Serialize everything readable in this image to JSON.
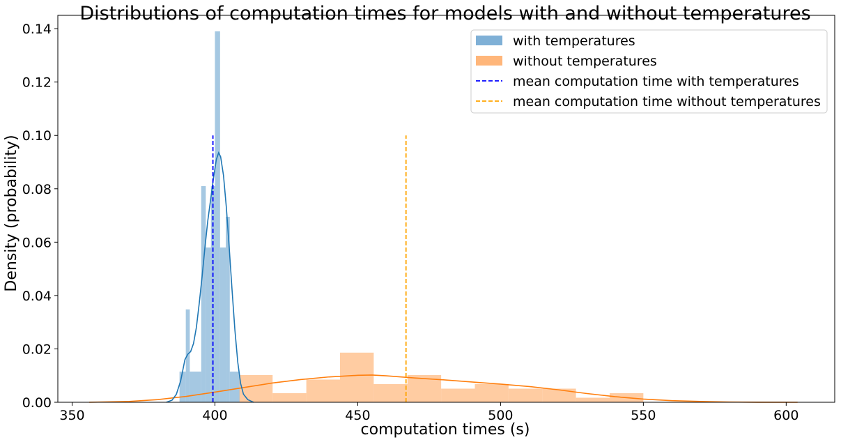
{
  "chart_data": {
    "type": "histogram",
    "title": "Distributions of computation times for models with and without temperatures",
    "xlabel": "computation times (s)",
    "ylabel": "Density (probability)",
    "xlim": [
      345,
      617
    ],
    "ylim": [
      0,
      0.145
    ],
    "xticks": [
      350,
      400,
      450,
      500,
      550,
      600
    ],
    "xtick_labels": [
      "350",
      "400",
      "450",
      "500",
      "550",
      "600"
    ],
    "yticks": [
      0,
      0.02,
      0.04,
      0.06,
      0.08,
      0.1,
      0.12,
      0.14
    ],
    "ytick_labels": [
      "0.00",
      "0.02",
      "0.04",
      "0.06",
      "0.08",
      "0.10",
      "0.12",
      "0.14"
    ],
    "grid": false,
    "legend_position": "top-right",
    "legend": [
      {
        "label": "with temperatures",
        "kind": "patch",
        "color": "#7fb0d6"
      },
      {
        "label": "without temperatures",
        "kind": "patch",
        "color": "#ffb67a"
      },
      {
        "label": "mean computation time with temperatures",
        "kind": "dashed",
        "color": "#0000ff"
      },
      {
        "label": "mean computation time without temperatures",
        "kind": "dashed",
        "color": "#ffa500"
      }
    ],
    "series": [
      {
        "name": "with temperatures",
        "kind": "histogram",
        "color": "#7fb0d6",
        "opacity": 0.7,
        "bins": [
          {
            "x0": 387.6,
            "x1": 389.8,
            "y": 0.0115
          },
          {
            "x0": 389.8,
            "x1": 391.2,
            "y": 0.0348
          },
          {
            "x0": 391.2,
            "x1": 395.2,
            "y": 0.0115
          },
          {
            "x0": 395.2,
            "x1": 396.8,
            "y": 0.081
          },
          {
            "x0": 396.8,
            "x1": 398.6,
            "y": 0.058
          },
          {
            "x0": 398.6,
            "x1": 400.0,
            "y": 0.081
          },
          {
            "x0": 400.0,
            "x1": 401.8,
            "y": 0.139
          },
          {
            "x0": 401.8,
            "x1": 403.8,
            "y": 0.058
          },
          {
            "x0": 403.8,
            "x1": 405.2,
            "y": 0.0695
          },
          {
            "x0": 405.2,
            "x1": 408.6,
            "y": 0.0115
          }
        ]
      },
      {
        "name": "without temperatures",
        "kind": "histogram",
        "color": "#ffb67a",
        "opacity": 0.7,
        "bins": [
          {
            "x0": 408.5,
            "x1": 420.2,
            "y": 0.0102
          },
          {
            "x0": 420.2,
            "x1": 432.0,
            "y": 0.0034
          },
          {
            "x0": 432.0,
            "x1": 443.8,
            "y": 0.0085
          },
          {
            "x0": 443.8,
            "x1": 455.6,
            "y": 0.0186
          },
          {
            "x0": 455.6,
            "x1": 467.4,
            "y": 0.0068
          },
          {
            "x0": 467.4,
            "x1": 479.2,
            "y": 0.0102
          },
          {
            "x0": 479.2,
            "x1": 491.0,
            "y": 0.0051
          },
          {
            "x0": 491.0,
            "x1": 502.8,
            "y": 0.0068
          },
          {
            "x0": 502.8,
            "x1": 514.6,
            "y": 0.0051
          },
          {
            "x0": 514.6,
            "x1": 526.4,
            "y": 0.0051
          },
          {
            "x0": 526.4,
            "x1": 538.2,
            "y": 0.0017
          },
          {
            "x0": 538.2,
            "x1": 550.0,
            "y": 0.0034
          }
        ]
      },
      {
        "name": "with temperatures",
        "kind": "kde",
        "color": "#1f77b4",
        "points": [
          [
            383,
            0
          ],
          [
            385,
            0.0008
          ],
          [
            386.5,
            0.003
          ],
          [
            388,
            0.008
          ],
          [
            389.5,
            0.016
          ],
          [
            390.5,
            0.018
          ],
          [
            391.5,
            0.019
          ],
          [
            392.5,
            0.022
          ],
          [
            393.5,
            0.028
          ],
          [
            394.5,
            0.037
          ],
          [
            395.5,
            0.047
          ],
          [
            396.5,
            0.058
          ],
          [
            397.5,
            0.068
          ],
          [
            398.5,
            0.076
          ],
          [
            399.5,
            0.084
          ],
          [
            400.5,
            0.091
          ],
          [
            401.3,
            0.0935
          ],
          [
            402,
            0.092
          ],
          [
            403,
            0.085
          ],
          [
            404,
            0.073
          ],
          [
            405,
            0.058
          ],
          [
            406,
            0.042
          ],
          [
            407,
            0.027
          ],
          [
            408,
            0.015
          ],
          [
            409,
            0.007
          ],
          [
            410,
            0.003
          ],
          [
            411.5,
            0.001
          ],
          [
            413.5,
            0
          ]
        ]
      },
      {
        "name": "without temperatures",
        "kind": "kde",
        "color": "#ff7f0e",
        "points": [
          [
            356,
            0
          ],
          [
            370,
            0.0003
          ],
          [
            380,
            0.001
          ],
          [
            390,
            0.0022
          ],
          [
            400,
            0.0038
          ],
          [
            410,
            0.0055
          ],
          [
            420,
            0.0072
          ],
          [
            430,
            0.0085
          ],
          [
            440,
            0.0095
          ],
          [
            450,
            0.0101
          ],
          [
            455,
            0.0102
          ],
          [
            460,
            0.0099
          ],
          [
            470,
            0.0091
          ],
          [
            480,
            0.0084
          ],
          [
            490,
            0.0076
          ],
          [
            500,
            0.0068
          ],
          [
            510,
            0.0059
          ],
          [
            520,
            0.0047
          ],
          [
            530,
            0.0033
          ],
          [
            540,
            0.0021
          ],
          [
            550,
            0.0012
          ],
          [
            560,
            0.0006
          ],
          [
            570,
            0.0003
          ],
          [
            580,
            0.0001
          ],
          [
            590,
            3e-05
          ],
          [
            604,
            0
          ]
        ]
      },
      {
        "name": "mean computation time with temperatures",
        "kind": "vline",
        "color": "#0000ff",
        "x": 399.3,
        "y0": 0,
        "y1": 0.1
      },
      {
        "name": "mean computation time without temperatures",
        "kind": "vline",
        "color": "#ffa500",
        "x": 466.9,
        "y0": 0,
        "y1": 0.1
      }
    ]
  }
}
